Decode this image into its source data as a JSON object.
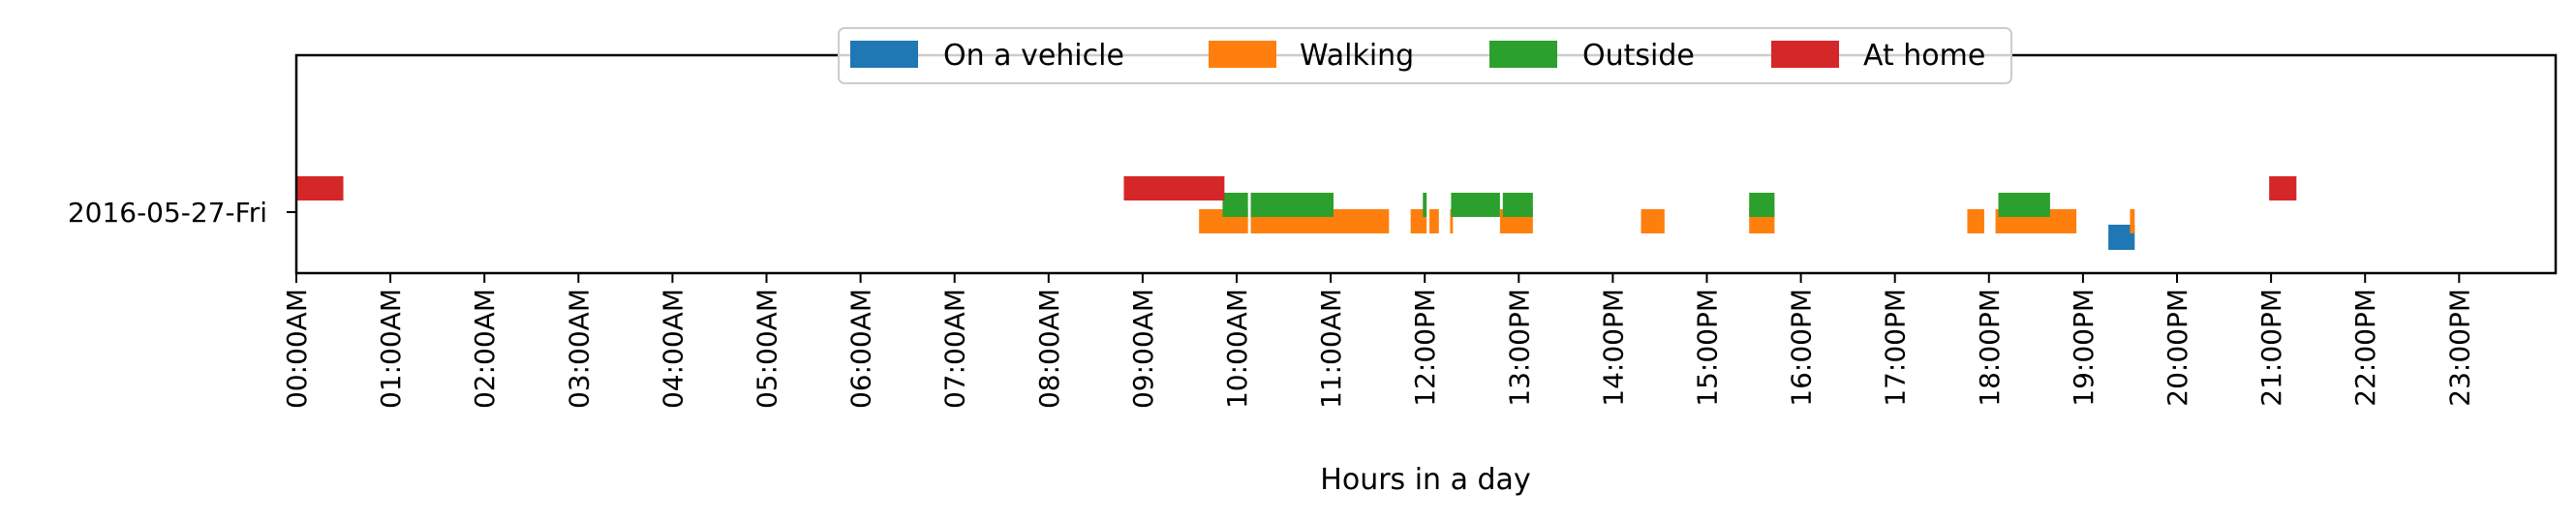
{
  "chart_data": {
    "type": "timeline",
    "xlabel": "Hours in a day",
    "xlim": [
      0,
      24
    ],
    "y_categories": [
      "2016-05-27-Fri"
    ],
    "x_ticks": [
      {
        "value": 0,
        "label": "00:00AM"
      },
      {
        "value": 1,
        "label": "01:00AM"
      },
      {
        "value": 2,
        "label": "02:00AM"
      },
      {
        "value": 3,
        "label": "03:00AM"
      },
      {
        "value": 4,
        "label": "04:00AM"
      },
      {
        "value": 5,
        "label": "05:00AM"
      },
      {
        "value": 6,
        "label": "06:00AM"
      },
      {
        "value": 7,
        "label": "07:00AM"
      },
      {
        "value": 8,
        "label": "08:00AM"
      },
      {
        "value": 9,
        "label": "09:00AM"
      },
      {
        "value": 10,
        "label": "10:00AM"
      },
      {
        "value": 11,
        "label": "11:00AM"
      },
      {
        "value": 12,
        "label": "12:00PM"
      },
      {
        "value": 13,
        "label": "13:00PM"
      },
      {
        "value": 14,
        "label": "14:00PM"
      },
      {
        "value": 15,
        "label": "15:00PM"
      },
      {
        "value": 16,
        "label": "16:00PM"
      },
      {
        "value": 17,
        "label": "17:00PM"
      },
      {
        "value": 18,
        "label": "18:00PM"
      },
      {
        "value": 19,
        "label": "19:00PM"
      },
      {
        "value": 20,
        "label": "20:00PM"
      },
      {
        "value": 21,
        "label": "21:00PM"
      },
      {
        "value": 22,
        "label": "22:00PM"
      },
      {
        "value": 23,
        "label": "23:00PM"
      }
    ],
    "legend_position": "top-center",
    "series": [
      {
        "name": "On a vehicle",
        "color": "#1f77b4",
        "intervals": [
          [
            19.27,
            19.55
          ]
        ]
      },
      {
        "name": "Walking",
        "color": "#ff7f0e",
        "intervals": [
          [
            9.6,
            10.12
          ],
          [
            10.15,
            11.62
          ],
          [
            11.85,
            12.02
          ],
          [
            12.05,
            12.15
          ],
          [
            12.27,
            12.3
          ],
          [
            12.8,
            13.15
          ],
          [
            14.3,
            14.55
          ],
          [
            15.45,
            15.72
          ],
          [
            17.77,
            17.95
          ],
          [
            18.07,
            18.93
          ],
          [
            19.5,
            19.55
          ]
        ]
      },
      {
        "name": "Outside",
        "color": "#2ca02c",
        "intervals": [
          [
            9.85,
            10.12
          ],
          [
            10.15,
            11.03
          ],
          [
            11.98,
            12.02
          ],
          [
            12.28,
            12.8
          ],
          [
            12.83,
            13.15
          ],
          [
            15.45,
            15.72
          ],
          [
            18.1,
            18.65
          ]
        ]
      },
      {
        "name": "At home",
        "color": "#d62728",
        "intervals": [
          [
            0.0,
            0.5
          ],
          [
            8.8,
            9.87
          ],
          [
            20.98,
            21.27
          ]
        ]
      }
    ]
  }
}
